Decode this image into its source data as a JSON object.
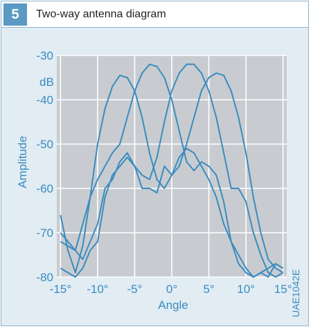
{
  "figure": {
    "number": "5",
    "title": "Two-way antenna diagram",
    "code": "UAE1042E"
  },
  "colors": {
    "accent": "#3a8bbf",
    "plot_bg": "#c8ccd0",
    "panel_bg": "#e1ecf3",
    "badge": "#5b9ac3",
    "grid": "#ffffff"
  },
  "chart_data": {
    "type": "line",
    "xlabel": "Angle",
    "ylabel": "Amplitude",
    "yunit": "dB",
    "xlim": [
      -15.5,
      15.5
    ],
    "ylim": [
      -80,
      -30
    ],
    "xticks": [
      -15,
      -10,
      -5,
      0,
      5,
      10,
      15
    ],
    "xtick_labels": [
      "-15°",
      "-10°",
      "-5°",
      "0°",
      "5°",
      "10°",
      "15°"
    ],
    "yticks": [
      -30,
      -40,
      -50,
      -60,
      -70,
      -80
    ],
    "ytick_labels": [
      "-30",
      "-40",
      "-50",
      "-60",
      "-70",
      "-80"
    ],
    "grid": true,
    "series": [
      {
        "x": [
          -15,
          -14,
          -13,
          -12,
          -11,
          -10,
          -9,
          -8,
          -7,
          -6,
          -5,
          -4,
          -3,
          -2,
          -1,
          0,
          1,
          2,
          3,
          4,
          5,
          6,
          7,
          8,
          9,
          10,
          11,
          12,
          13,
          14,
          15
        ],
        "values": [
          -66,
          -74,
          -79,
          -73,
          -62,
          -50,
          -42,
          -37,
          -34.5,
          -35,
          -38,
          -44,
          -52,
          -58,
          -60,
          -57,
          -53,
          -51,
          -52,
          -55,
          -58,
          -62,
          -68,
          -72,
          -75,
          -78,
          -80,
          -79,
          -80,
          -77,
          -78
        ]
      },
      {
        "x": [
          -15,
          -14,
          -13,
          -12,
          -11,
          -10,
          -9,
          -8,
          -7,
          -6,
          -5,
          -4,
          -3,
          -2,
          -1,
          0,
          1,
          2,
          3,
          4,
          5,
          6,
          7,
          8,
          9,
          10,
          11,
          12,
          13,
          14,
          15
        ],
        "values": [
          -70,
          -72,
          -74,
          -68,
          -62,
          -58,
          -55,
          -52,
          -50,
          -44,
          -38,
          -34,
          -32,
          -32.5,
          -35,
          -40,
          -47,
          -54,
          -56,
          -54,
          -55,
          -57,
          -63,
          -72,
          -77,
          -79,
          -80,
          -79,
          -78,
          -77,
          -78
        ]
      },
      {
        "x": [
          -15,
          -14,
          -13,
          -12,
          -11,
          -10,
          -9,
          -8,
          -7,
          -6,
          -5,
          -4,
          -3,
          -2,
          -1,
          0,
          1,
          2,
          3,
          4,
          5,
          6,
          7,
          8,
          9,
          10,
          11,
          12,
          13,
          14,
          15
        ],
        "values": [
          -78,
          -79,
          -80,
          -78,
          -74,
          -72,
          -62,
          -57,
          -55,
          -53,
          -55,
          -57,
          -58,
          -53,
          -45,
          -38,
          -34,
          -32,
          -32,
          -34,
          -38,
          -44,
          -52,
          -60,
          -60,
          -63,
          -70,
          -75,
          -79,
          -80,
          -79
        ]
      },
      {
        "x": [
          -15,
          -14,
          -13,
          -12,
          -11,
          -10,
          -9,
          -8,
          -7,
          -6,
          -5,
          -4,
          -3,
          -2,
          -1,
          0,
          1,
          2,
          3,
          4,
          5,
          6,
          7,
          8,
          9,
          10,
          11,
          12,
          13,
          14,
          15
        ],
        "values": [
          -72,
          -73,
          -74,
          -76,
          -72,
          -68,
          -60,
          -58,
          -54,
          -52,
          -55,
          -60,
          -60,
          -61,
          -55,
          -57,
          -55,
          -50,
          -44,
          -38,
          -35,
          -34,
          -34.5,
          -38,
          -44,
          -52,
          -62,
          -70,
          -76,
          -78,
          -79
        ]
      }
    ]
  }
}
